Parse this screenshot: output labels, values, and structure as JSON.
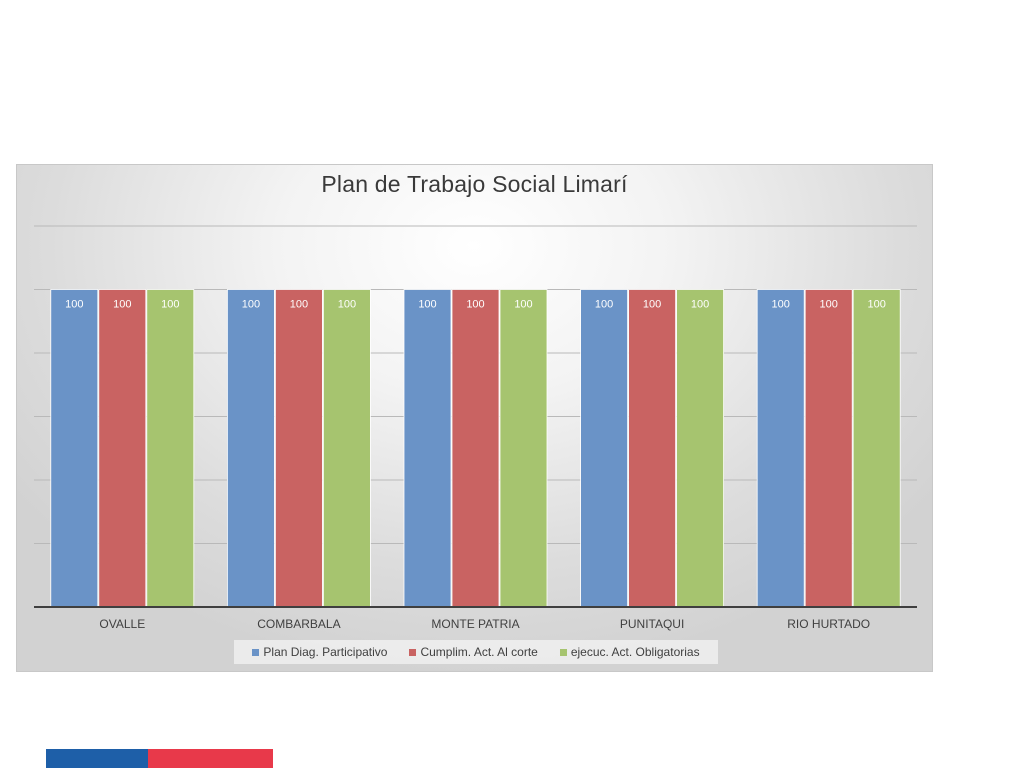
{
  "colors": {
    "series": [
      "#6a93c7",
      "#c96362",
      "#a6c46f"
    ],
    "footer_blue": "#1e5fa8",
    "footer_red": "#e8394a"
  },
  "chart_data": {
    "type": "bar",
    "title": "Plan de Trabajo Social Limarí",
    "xlabel": "",
    "ylabel": "",
    "categories": [
      "OVALLE",
      "COMBARBALA",
      "MONTE PATRIA",
      "PUNITAQUI",
      "RIO HURTADO"
    ],
    "series": [
      {
        "name": "Plan Diag. Participativo",
        "values": [
          100,
          100,
          100,
          100,
          100
        ]
      },
      {
        "name": "Cumplim. Act. Al corte",
        "values": [
          100,
          100,
          100,
          100,
          100
        ]
      },
      {
        "name": "ejecuc. Act. Obligatorias",
        "values": [
          100,
          100,
          100,
          100,
          100
        ]
      }
    ],
    "ylim": [
      0,
      120
    ],
    "grid": true,
    "data_labels": true,
    "legend_position": "bottom"
  }
}
